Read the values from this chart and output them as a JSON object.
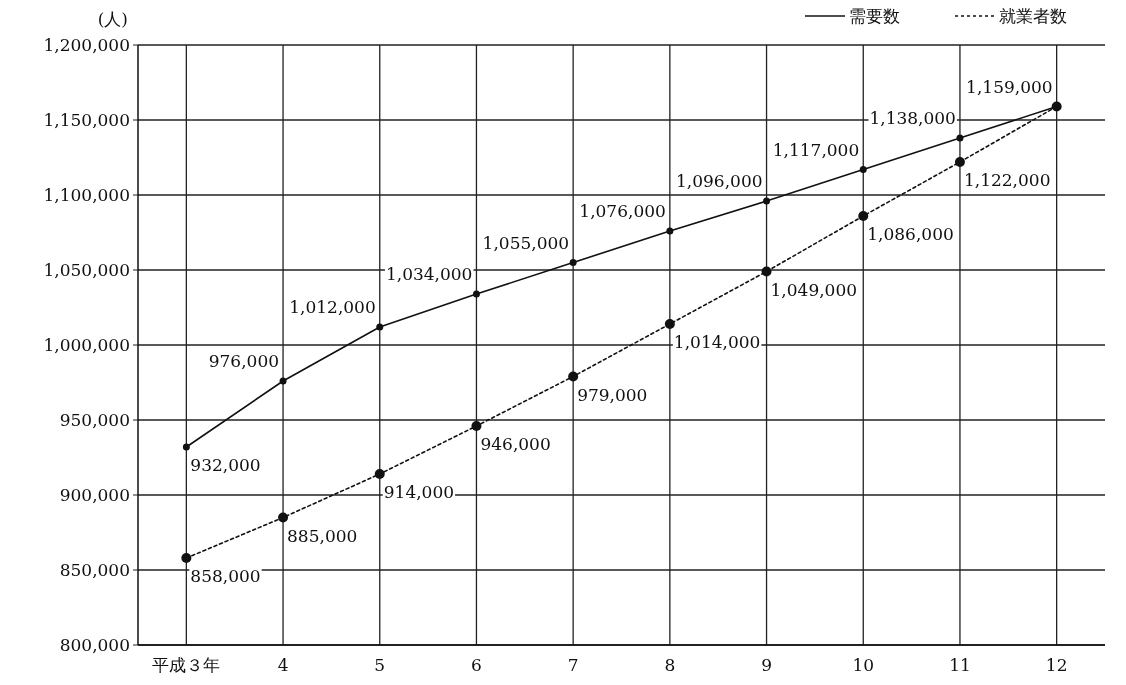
{
  "chart_data": {
    "type": "line",
    "ylabel": "(人)",
    "categories": [
      "平成３年",
      "4",
      "5",
      "6",
      "7",
      "8",
      "9",
      "10",
      "11",
      "12"
    ],
    "series": [
      {
        "name": "需要数",
        "color": "#111111",
        "line_style": "solid",
        "values": [
          932000,
          976000,
          1012000,
          1034000,
          1055000,
          1076000,
          1096000,
          1117000,
          1138000,
          1159000
        ],
        "value_labels": [
          "932,000",
          "976,000",
          "1,012,000",
          "1,034,000",
          "1,055,000",
          "1,076,000",
          "1,096,000",
          "1,117,000",
          "1,138,000",
          "1,159,000"
        ]
      },
      {
        "name": "就業者数",
        "color": "#111111",
        "line_style": "dotted",
        "values": [
          858000,
          885000,
          914000,
          946000,
          979000,
          1014000,
          1049000,
          1086000,
          1122000,
          1159000
        ],
        "value_labels": [
          "858,000",
          "885,000",
          "914,000",
          "946,000",
          "979,000",
          "1,014,000",
          "1,049,000",
          "1,086,000",
          "1,122,000",
          null
        ]
      }
    ],
    "marker": "circle",
    "ylim": [
      800000,
      1200000
    ],
    "yticks": [
      {
        "value": 800000,
        "label": "800,000"
      },
      {
        "value": 850000,
        "label": "850,000"
      },
      {
        "value": 900000,
        "label": "900,000"
      },
      {
        "value": 950000,
        "label": "950,000"
      },
      {
        "value": 1000000,
        "label": "1,000,000"
      },
      {
        "value": 1050000,
        "label": "1,050,000"
      },
      {
        "value": 1100000,
        "label": "1,100,000"
      },
      {
        "value": 1150000,
        "label": "1,150,000"
      },
      {
        "value": 1200000,
        "label": "1,200,000"
      }
    ],
    "grid": true,
    "legend": "top right"
  }
}
